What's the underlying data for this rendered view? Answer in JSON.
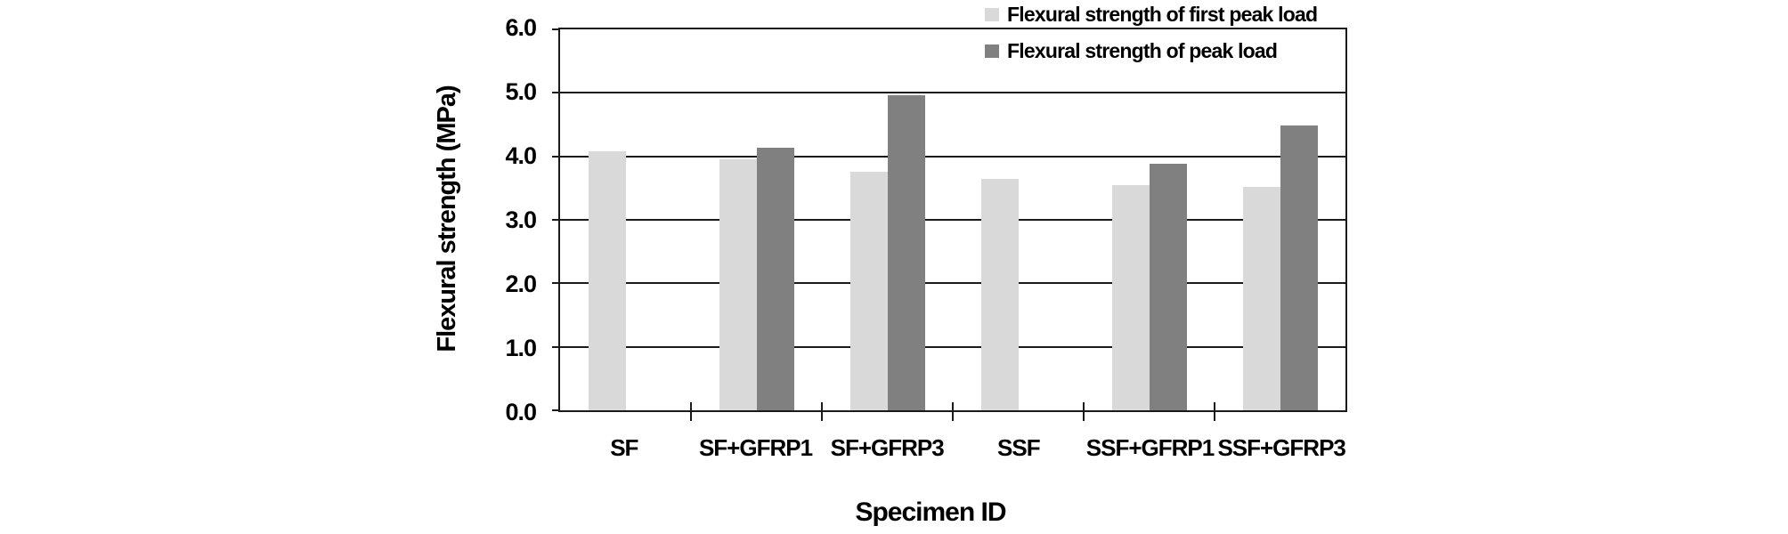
{
  "chart_data": {
    "type": "bar",
    "title": "",
    "xlabel": "Specimen ID",
    "ylabel": "Flexural strength (MPa)",
    "categories": [
      "SF",
      "SF+GFRP1",
      "SF+GFRP3",
      "SSF",
      "SSF+GFRP1",
      "SSF+GFRP3"
    ],
    "series": [
      {
        "name": "Flexural strength of first peak load",
        "color": "#d9d9d9",
        "values": [
          4.08,
          3.95,
          3.76,
          3.64,
          3.55,
          3.52
        ]
      },
      {
        "name": "Flexural strength of peak load",
        "color": "#808080",
        "values": [
          null,
          4.13,
          4.96,
          null,
          3.89,
          4.49
        ]
      }
    ],
    "ylim": [
      0.0,
      6.0
    ],
    "ytick_step": 1.0,
    "ytick_decimals": 1,
    "grid": "horizontal",
    "legend_position": "top-right",
    "axis_color": "#1a1a1a"
  }
}
